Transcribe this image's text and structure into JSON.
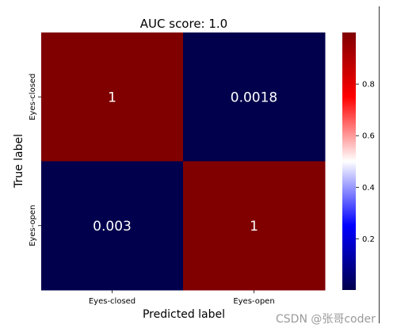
{
  "watermark": "CSDN @张哥coder",
  "chart_data": {
    "type": "heatmap",
    "title": "AUC score: 1.0",
    "xlabel": "Predicted label",
    "ylabel": "True label",
    "x_categories": [
      "Eyes-closed",
      "Eyes-open"
    ],
    "y_categories": [
      "Eyes-closed",
      "Eyes-open"
    ],
    "values": [
      [
        1,
        0.0018
      ],
      [
        0.003,
        1
      ]
    ],
    "cell_labels": [
      [
        "1",
        "0.0018"
      ],
      [
        "0.003",
        "1"
      ]
    ],
    "colormap": "seismic",
    "colors": {
      "low": "#00004c",
      "mid_low": "#0000ff",
      "mid": "#ffffff",
      "mid_high": "#ff0000",
      "high": "#800000"
    },
    "colorbar": {
      "ticks": [
        0.2,
        0.4,
        0.6,
        0.8
      ],
      "tick_labels": [
        "0.2",
        "0.4",
        "0.6",
        "0.8"
      ],
      "range": [
        0.0018,
        1
      ]
    }
  }
}
